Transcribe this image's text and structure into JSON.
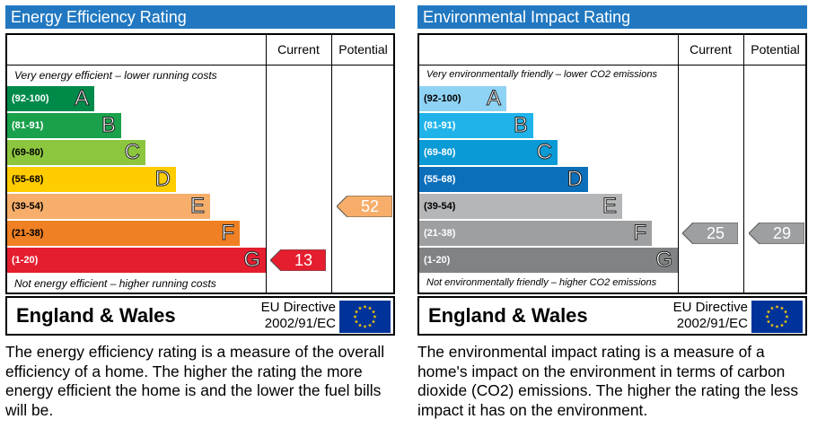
{
  "colors": {
    "title_bar": "#2178c1",
    "footer_flag": "#003399"
  },
  "chart_data": [
    {
      "type": "bar",
      "title": "Energy Efficiency Rating",
      "columns": [
        "Current",
        "Potential"
      ],
      "top_note": "Very energy efficient – lower running costs",
      "bottom_note": "Not energy efficient – higher running costs",
      "bands": [
        {
          "letter": "A",
          "range": "(92-100)",
          "color": "#008a4a"
        },
        {
          "letter": "B",
          "range": "(81-91)",
          "color": "#1aa14b"
        },
        {
          "letter": "C",
          "range": "(69-80)",
          "color": "#8cc63f"
        },
        {
          "letter": "D",
          "range": "(55-68)",
          "color": "#ffcc00"
        },
        {
          "letter": "E",
          "range": "(39-54)",
          "color": "#f7ae6b"
        },
        {
          "letter": "F",
          "range": "(21-38)",
          "color": "#ef8023"
        },
        {
          "letter": "G",
          "range": "(1-20)",
          "color": "#e41e2f"
        }
      ],
      "current": {
        "value": 13,
        "band": "G",
        "color": "#e41e2f"
      },
      "potential": {
        "value": 52,
        "band": "E",
        "color": "#f7ae6b"
      },
      "footer": {
        "region": "England & Wales",
        "directive_line1": "EU Directive",
        "directive_line2": "2002/91/EC"
      },
      "description": "The energy efficiency rating is a measure of the overall efficiency of a home.  The higher the rating the more energy efficient the home is and the lower the fuel bills will be."
    },
    {
      "type": "bar",
      "title": "Environmental Impact Rating",
      "columns": [
        "Current",
        "Potential"
      ],
      "top_note": "Very environmentally friendly – lower CO2 emissions",
      "bottom_note": "Not environmentally friendly – higher CO2 emissions",
      "bands": [
        {
          "letter": "A",
          "range": "(92-100)",
          "color": "#8fd3f4"
        },
        {
          "letter": "B",
          "range": "(81-91)",
          "color": "#1fb3e9"
        },
        {
          "letter": "C",
          "range": "(69-80)",
          "color": "#0a9ad6"
        },
        {
          "letter": "D",
          "range": "(55-68)",
          "color": "#0b6fba"
        },
        {
          "letter": "E",
          "range": "(39-54)",
          "color": "#b5b6b8"
        },
        {
          "letter": "F",
          "range": "(21-38)",
          "color": "#9d9fa1"
        },
        {
          "letter": "G",
          "range": "(1-20)",
          "color": "#808284"
        }
      ],
      "current": {
        "value": 25,
        "band": "F",
        "color": "#9d9fa1"
      },
      "potential": {
        "value": 29,
        "band": "F",
        "color": "#9d9fa1"
      },
      "footer": {
        "region": "England & Wales",
        "directive_line1": "EU Directive",
        "directive_line2": "2002/91/EC"
      },
      "description": "The environmental impact rating is a measure of a home's impact on the environment in terms of carbon dioxide (CO2) emissions.  The higher the rating the less impact it has on the environment."
    }
  ]
}
